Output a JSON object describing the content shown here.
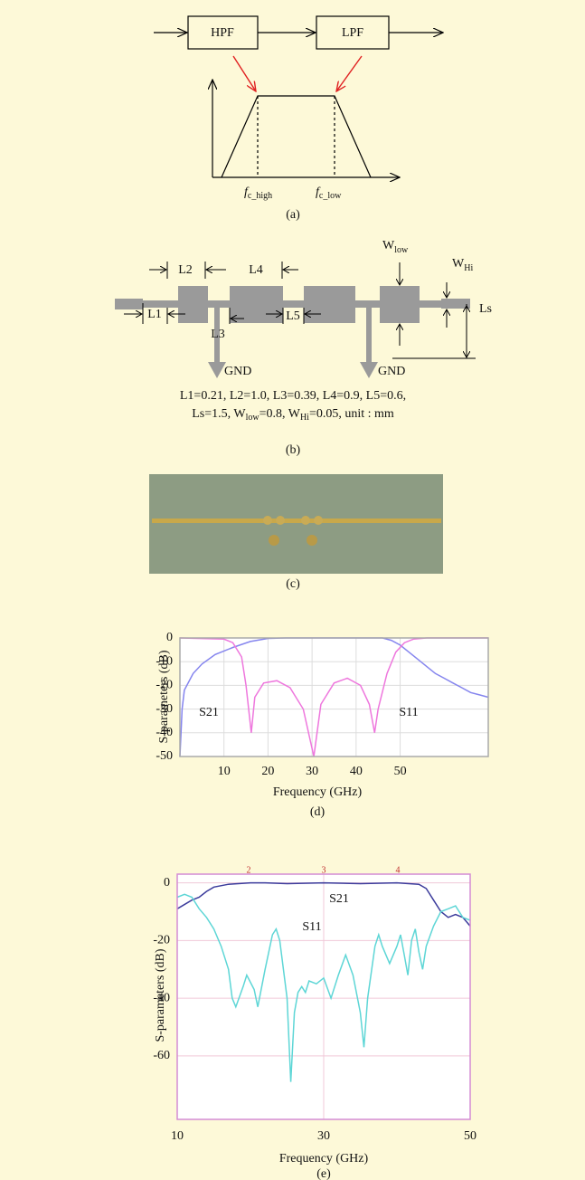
{
  "panel_a": {
    "blocks": [
      "HPF",
      "LPF"
    ],
    "cutoffs": [
      {
        "f": "f",
        "sub": "c_high"
      },
      {
        "f": "f",
        "sub": "c_low"
      }
    ],
    "caption": "(a)"
  },
  "panel_b": {
    "dimensions": [
      "L1",
      "L2",
      "L3",
      "L4",
      "L5",
      "Ls"
    ],
    "widths": [
      {
        "main": "W",
        "sub": "low"
      },
      {
        "main": "W",
        "sub": "Hi"
      }
    ],
    "ground": [
      "GND",
      "GND"
    ],
    "parameters": {
      "line1": "L1=0.21, L2=1.0, L3=0.39, L4=0.9, L5=0.6,",
      "line2": [
        "Ls=1.5, W",
        "low",
        "=0.8, W",
        "Hi",
        "=0.05, unit : mm"
      ]
    },
    "caption": "(b)"
  },
  "panel_c": {
    "caption": "(c)"
  },
  "chart_data": [
    {
      "type": "line",
      "x_label": "Frequency (GHz)",
      "y_label": "S-parameters (dB)",
      "caption": "(d)",
      "xlim": [
        0,
        70
      ],
      "ylim": [
        -50,
        0
      ],
      "xticks": [
        10,
        20,
        30,
        40,
        50
      ],
      "yticks": [
        0,
        -10,
        -20,
        -30,
        -40,
        -50
      ],
      "grid": true,
      "series": [
        {
          "name": "S21",
          "color": "#8585ee",
          "x": [
            0,
            0.5,
            1,
            3,
            5,
            8,
            12,
            16,
            20,
            24,
            46,
            48,
            50,
            52,
            54,
            56,
            58,
            60,
            62,
            64,
            66,
            68,
            70
          ],
          "values": [
            -50,
            -30,
            -22,
            -15,
            -11,
            -7,
            -4,
            -1.5,
            -0.2,
            0,
            0,
            -1,
            -3,
            -6,
            -9,
            -12,
            -15,
            -17,
            -19,
            -21,
            -23,
            -24,
            -25
          ]
        },
        {
          "name": "S11",
          "color": "#ee77dd",
          "x": [
            0,
            10,
            12,
            14,
            15,
            16.2,
            17,
            19,
            22,
            25,
            28,
            30.4,
            32,
            35,
            38,
            41,
            43,
            44.2,
            45,
            47,
            49,
            51,
            53,
            56,
            70
          ],
          "values": [
            0,
            -0.5,
            -2,
            -8,
            -20,
            -40,
            -25,
            -19,
            -18,
            -21,
            -30,
            -50,
            -28,
            -19,
            -17,
            -20,
            -28,
            -40,
            -30,
            -15,
            -6,
            -2,
            -0.5,
            0,
            0
          ]
        }
      ]
    },
    {
      "type": "line",
      "x_label": "Frequency (GHz)",
      "y_label": "S-parameters (dB)",
      "caption": "(e)",
      "xlim": [
        10,
        50
      ],
      "ylim": [
        -82,
        3
      ],
      "xticks": [
        10,
        30,
        50
      ],
      "yticks": [
        0,
        -20,
        -40,
        -60
      ],
      "grid": true,
      "markers": [
        "2",
        "3",
        "4"
      ],
      "series": [
        {
          "name": "S21",
          "color": "#3c3c9c",
          "x": [
            10,
            12,
            13,
            14,
            15,
            17,
            20,
            22,
            25,
            30,
            35,
            40,
            43,
            44,
            45,
            46,
            47,
            48,
            49,
            50
          ],
          "values": [
            -9,
            -6,
            -5,
            -3,
            -1.5,
            -0.5,
            0,
            0,
            -0.3,
            0,
            -0.3,
            0,
            -0.5,
            -2,
            -6,
            -10,
            -12,
            -11,
            -12,
            -15
          ]
        },
        {
          "name": "S11",
          "color": "#5ed6d6",
          "x": [
            10,
            11,
            12,
            13,
            14,
            15,
            16,
            17,
            17.5,
            18,
            19,
            19.5,
            20.5,
            21,
            22,
            23,
            23.5,
            24,
            25,
            25.5,
            26,
            26.5,
            27,
            27.5,
            28,
            29,
            30,
            31,
            32,
            33,
            34,
            35,
            35.5,
            36,
            37,
            37.5,
            38,
            39,
            40,
            40.5,
            41,
            41.5,
            42,
            42.5,
            43,
            43.5,
            44,
            45,
            46,
            47,
            48,
            49,
            50
          ],
          "values": [
            -5,
            -4,
            -5,
            -9,
            -12,
            -16,
            -22,
            -30,
            -40,
            -43,
            -36,
            -32,
            -37,
            -43,
            -30,
            -18,
            -16,
            -20,
            -40,
            -69,
            -45,
            -38,
            -36,
            -38,
            -34,
            -35,
            -33,
            -40,
            -32,
            -25,
            -32,
            -45,
            -57,
            -40,
            -22,
            -18,
            -22,
            -28,
            -22,
            -18,
            -25,
            -32,
            -20,
            -16,
            -24,
            -30,
            -22,
            -15,
            -10,
            -9,
            -8,
            -12,
            -13
          ]
        }
      ]
    }
  ]
}
